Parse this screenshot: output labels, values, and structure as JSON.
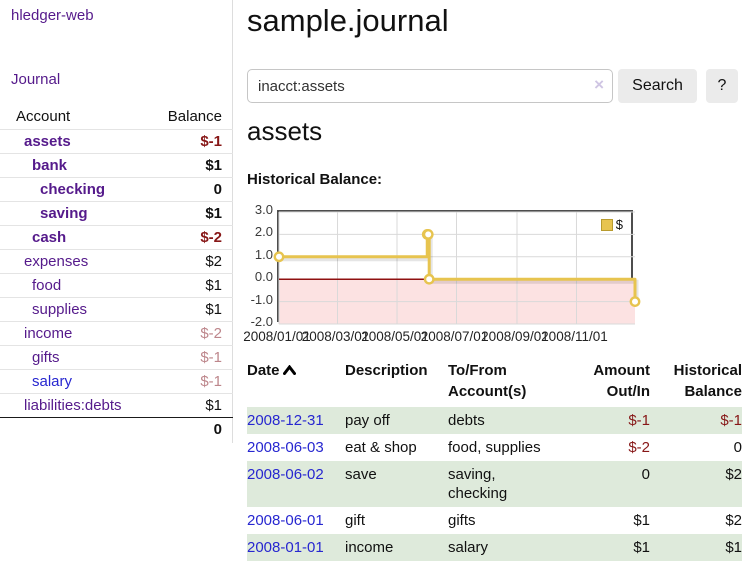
{
  "app": {
    "brand": "hledger-web",
    "nav_journal": "Journal"
  },
  "colors": {
    "link_purple": "#551a8b",
    "link_blue": "#2727d0",
    "negative": "#871717",
    "negative_faded": "#bd868b",
    "row_highlight_green": "#deeadb"
  },
  "sidebar": {
    "header": {
      "account": "Account",
      "balance": "Balance"
    },
    "accounts": [
      {
        "name": "assets",
        "balance": "$-1",
        "depth": 1,
        "bold": true,
        "balance_style": "neg-strong"
      },
      {
        "name": "bank",
        "balance": "$1",
        "depth": 2,
        "bold": true,
        "balance_style": ""
      },
      {
        "name": "checking",
        "balance": "0",
        "depth": 3,
        "bold": true,
        "balance_style": ""
      },
      {
        "name": "saving",
        "balance": "$1",
        "depth": 3,
        "bold": true,
        "balance_style": ""
      },
      {
        "name": "cash",
        "balance": "$-2",
        "depth": 2,
        "bold": true,
        "balance_style": "neg-strong"
      },
      {
        "name": "expenses",
        "balance": "$2",
        "depth": 1,
        "bold": false,
        "balance_style": ""
      },
      {
        "name": "food",
        "balance": "$1",
        "depth": 2,
        "bold": false,
        "balance_style": ""
      },
      {
        "name": "supplies",
        "balance": "$1",
        "depth": 2,
        "bold": false,
        "balance_style": ""
      },
      {
        "name": "income",
        "balance": "$-2",
        "depth": 1,
        "bold": false,
        "balance_style": "neg-faded"
      },
      {
        "name": "gifts",
        "balance": "$-1",
        "depth": 2,
        "bold": false,
        "balance_style": "neg-faded"
      },
      {
        "name": "salary",
        "balance": "$-1",
        "depth": 2,
        "bold": false,
        "balance_style": "neg-faded",
        "link_style": "blue"
      },
      {
        "name": "liabilities:debts",
        "balance": "$1",
        "depth": 1,
        "bold": false,
        "balance_style": ""
      }
    ],
    "total": "0"
  },
  "header": {
    "title": "sample.journal"
  },
  "search": {
    "value": "inacct:assets",
    "clear_icon": "×",
    "button": "Search",
    "help_button": "?"
  },
  "register": {
    "heading": "assets",
    "chart_label": "Historical Balance:"
  },
  "chart_data": {
    "type": "line",
    "title": "Historical Balance",
    "step": true,
    "series": [
      {
        "name": "$",
        "points": [
          {
            "date": "2008/01/01",
            "day": 0,
            "value": 1
          },
          {
            "date": "2008/06/01",
            "day": 152,
            "value": 2
          },
          {
            "date": "2008/06/02",
            "day": 153,
            "value": 2
          },
          {
            "date": "2008/06/03",
            "day": 154,
            "value": 0
          },
          {
            "date": "2008/12/31",
            "day": 365,
            "value": -1
          }
        ]
      }
    ],
    "x_ticks": [
      {
        "label": "2008/01/01",
        "day": 0
      },
      {
        "label": "2008/03/01",
        "day": 60
      },
      {
        "label": "2008/05/01",
        "day": 121
      },
      {
        "label": "2008/07/01",
        "day": 182
      },
      {
        "label": "2008/09/01",
        "day": 244
      },
      {
        "label": "2008/11/01",
        "day": 305
      }
    ],
    "y_ticks": [
      3.0,
      2.0,
      1.0,
      0.0,
      -1.0,
      -2.0
    ],
    "ylim": [
      -2,
      3
    ],
    "xlim_days": [
      0,
      365
    ],
    "grid": true,
    "legend_position": "top-right",
    "line_color": "#e7c44f",
    "marker_fill": "#ffffff",
    "zero_line_color": "#8f1010",
    "negative_region_color": "#fce2e2",
    "grid_color": "#d9d9d9"
  },
  "table": {
    "headers": [
      {
        "label": "Date",
        "sorted": "ascending"
      },
      {
        "label": "Description"
      },
      {
        "label": "To/From Account(s)"
      },
      {
        "label": "Amount Out/In"
      },
      {
        "label": "Historical Balance"
      }
    ],
    "rows": [
      {
        "date": "2008-12-31",
        "description": "pay off",
        "accounts": "debts",
        "amount": "$-1",
        "amount_neg": true,
        "balance": "$-1",
        "balance_neg": true,
        "highlight": true
      },
      {
        "date": "2008-06-03",
        "description": "eat & shop",
        "accounts": "food, supplies",
        "amount": "$-2",
        "amount_neg": true,
        "balance": "0",
        "balance_neg": false,
        "highlight": false
      },
      {
        "date": "2008-06-02",
        "description": "save",
        "accounts": "saving,\nchecking",
        "amount": "0",
        "amount_neg": false,
        "balance": "$2",
        "balance_neg": false,
        "highlight": true
      },
      {
        "date": "2008-06-01",
        "description": "gift",
        "accounts": "gifts",
        "amount": "$1",
        "amount_neg": false,
        "balance": "$2",
        "balance_neg": false,
        "highlight": false
      },
      {
        "date": "2008-01-01",
        "description": "income",
        "accounts": "salary",
        "amount": "$1",
        "amount_neg": false,
        "balance": "$1",
        "balance_neg": false,
        "highlight": true
      }
    ]
  }
}
